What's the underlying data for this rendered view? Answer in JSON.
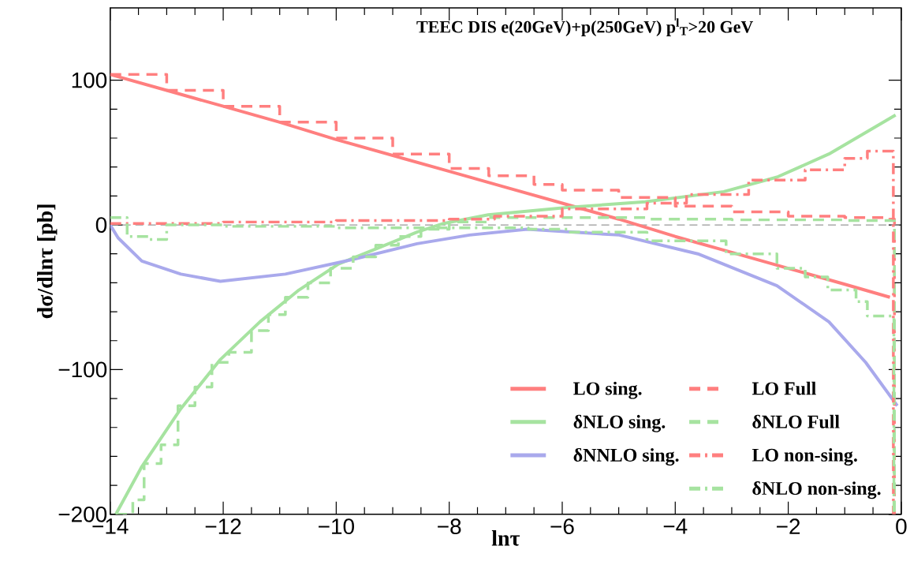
{
  "chart_data": {
    "type": "line",
    "title": "TEEC  DIS  e(20GeV)+p(250GeV)    p$^{l}$$_{T}$>20 GeV",
    "xlabel": "lnτ",
    "ylabel": "dσ/dlnτ  [pb]",
    "xlim": [
      -14,
      0
    ],
    "ylim": [
      -200,
      150
    ],
    "xticks": [
      {
        "value": -14,
        "label": "−14"
      },
      {
        "value": -12,
        "label": "−12"
      },
      {
        "value": -10,
        "label": "−10"
      },
      {
        "value": -8,
        "label": "−8"
      },
      {
        "value": -6,
        "label": "−6"
      },
      {
        "value": -4,
        "label": "−4"
      },
      {
        "value": -2,
        "label": "−2"
      },
      0
    ],
    "yticks": [
      {
        "value": -200,
        "label": "−200"
      },
      {
        "value": -100,
        "label": "−100"
      },
      0,
      100
    ],
    "ref_lines": [
      {
        "axis": "y",
        "value": 0,
        "color": "#999999",
        "line_style": "dashed"
      }
    ],
    "legend": "bottom right",
    "series": [
      {
        "name": "LO sing.",
        "color": "#ff7f7f",
        "line_style": "solid",
        "x": [
          -14,
          -13,
          -12,
          -11,
          -10,
          -9,
          -8,
          -7,
          -6,
          -5,
          -4,
          -3,
          -2,
          -1,
          -0.2
        ],
        "values": [
          104,
          93,
          82,
          71,
          59,
          48,
          37,
          26,
          15,
          4,
          -8,
          -19,
          -30,
          -41,
          -50
        ]
      },
      {
        "name": "δNLO sing.",
        "color": "#a6e3a0",
        "line_style": "solid",
        "x": [
          -13.9,
          -13.44,
          -12.75,
          -12.05,
          -11.35,
          -10.66,
          -9.96,
          -9.26,
          -8.57,
          -8.1,
          -7.31,
          -5.92,
          -4.53,
          -3.14,
          -2.2,
          -1.28,
          -0.1
        ],
        "values": [
          -200,
          -167,
          -127,
          -93,
          -67,
          -45,
          -27,
          -16,
          -5,
          1,
          7,
          12,
          16,
          23,
          33,
          49,
          76
        ]
      },
      {
        "name": "δNNLO sing.",
        "color": "#a9a9ec",
        "line_style": "solid",
        "x": [
          -14,
          -13.86,
          -13.44,
          -12.75,
          -12.05,
          -10.9,
          -9.72,
          -8.57,
          -7.64,
          -6.62,
          -4.99,
          -3.6,
          -2.2,
          -1.28,
          -0.63,
          -0.07
        ],
        "values": [
          0,
          -9,
          -25,
          -34,
          -39,
          -34,
          -24,
          -13,
          -7,
          -3,
          -7,
          -20,
          -42,
          -67,
          -95,
          -125
        ]
      },
      {
        "name": "LO Full",
        "type": "step",
        "color": "#ff7f7f",
        "line_style": "dashed",
        "x": [
          -14,
          -13,
          -12,
          -11,
          -10,
          -9,
          -8,
          -7.3,
          -6.5,
          -6,
          -5,
          -4,
          -3,
          -2,
          -1,
          -0.2,
          -0.12
        ],
        "values": [
          104,
          93,
          82,
          71,
          60,
          49,
          39,
          34,
          28,
          24,
          19,
          13,
          9,
          6,
          5,
          4,
          -200
        ]
      },
      {
        "name": "δNLO Full",
        "type": "step",
        "color": "#a6e3a0",
        "line_style": "dashed",
        "x": [
          -13.9,
          -13.6,
          -13.4,
          -13.1,
          -12.8,
          -12.5,
          -12.2,
          -11.9,
          -11.5,
          -11.2,
          -10.9,
          -10.5,
          -10.1,
          -9.7,
          -9.3,
          -8.9,
          -8.5,
          -8,
          -7.3,
          -6,
          -4.5,
          -3,
          -1,
          -0.2,
          -0.12
        ],
        "values": [
          -200,
          -190,
          -165,
          -152,
          -125,
          -112,
          -95,
          -88,
          -73,
          -62,
          -50,
          -40,
          -30,
          -22,
          -14,
          -8,
          -3,
          2,
          5,
          5,
          4,
          3.5,
          3,
          3,
          -200
        ]
      },
      {
        "name": "LO non-sing.",
        "type": "step",
        "color": "#ff7f7f",
        "line_style": "dashdot",
        "x": [
          -14,
          -12,
          -10,
          -8,
          -7.2,
          -6,
          -4.5,
          -3.8,
          -2.7,
          -1.7,
          -1,
          -0.6,
          -0.15,
          -0.14
        ],
        "values": [
          1,
          2,
          3,
          4,
          6,
          11,
          15,
          21,
          31,
          38,
          46,
          51,
          51,
          -200
        ]
      },
      {
        "name": "δNLO non-sing.",
        "type": "step",
        "color": "#a6e3a0",
        "line_style": "dashdot",
        "x": [
          -14,
          -13.7,
          -13.3,
          -13,
          -12,
          -10,
          -8,
          -7.3,
          -6.6,
          -5.9,
          -4.5,
          -3.1,
          -2.2,
          -1.7,
          -1.3,
          -0.8,
          -0.6,
          -0.3,
          -0.13
        ],
        "values": [
          5,
          -8,
          -10,
          0,
          -1,
          -2,
          -2,
          -2,
          -3,
          -5,
          -11,
          -20,
          -30,
          -36,
          -45,
          -53,
          -63,
          -63,
          -200
        ]
      }
    ]
  }
}
